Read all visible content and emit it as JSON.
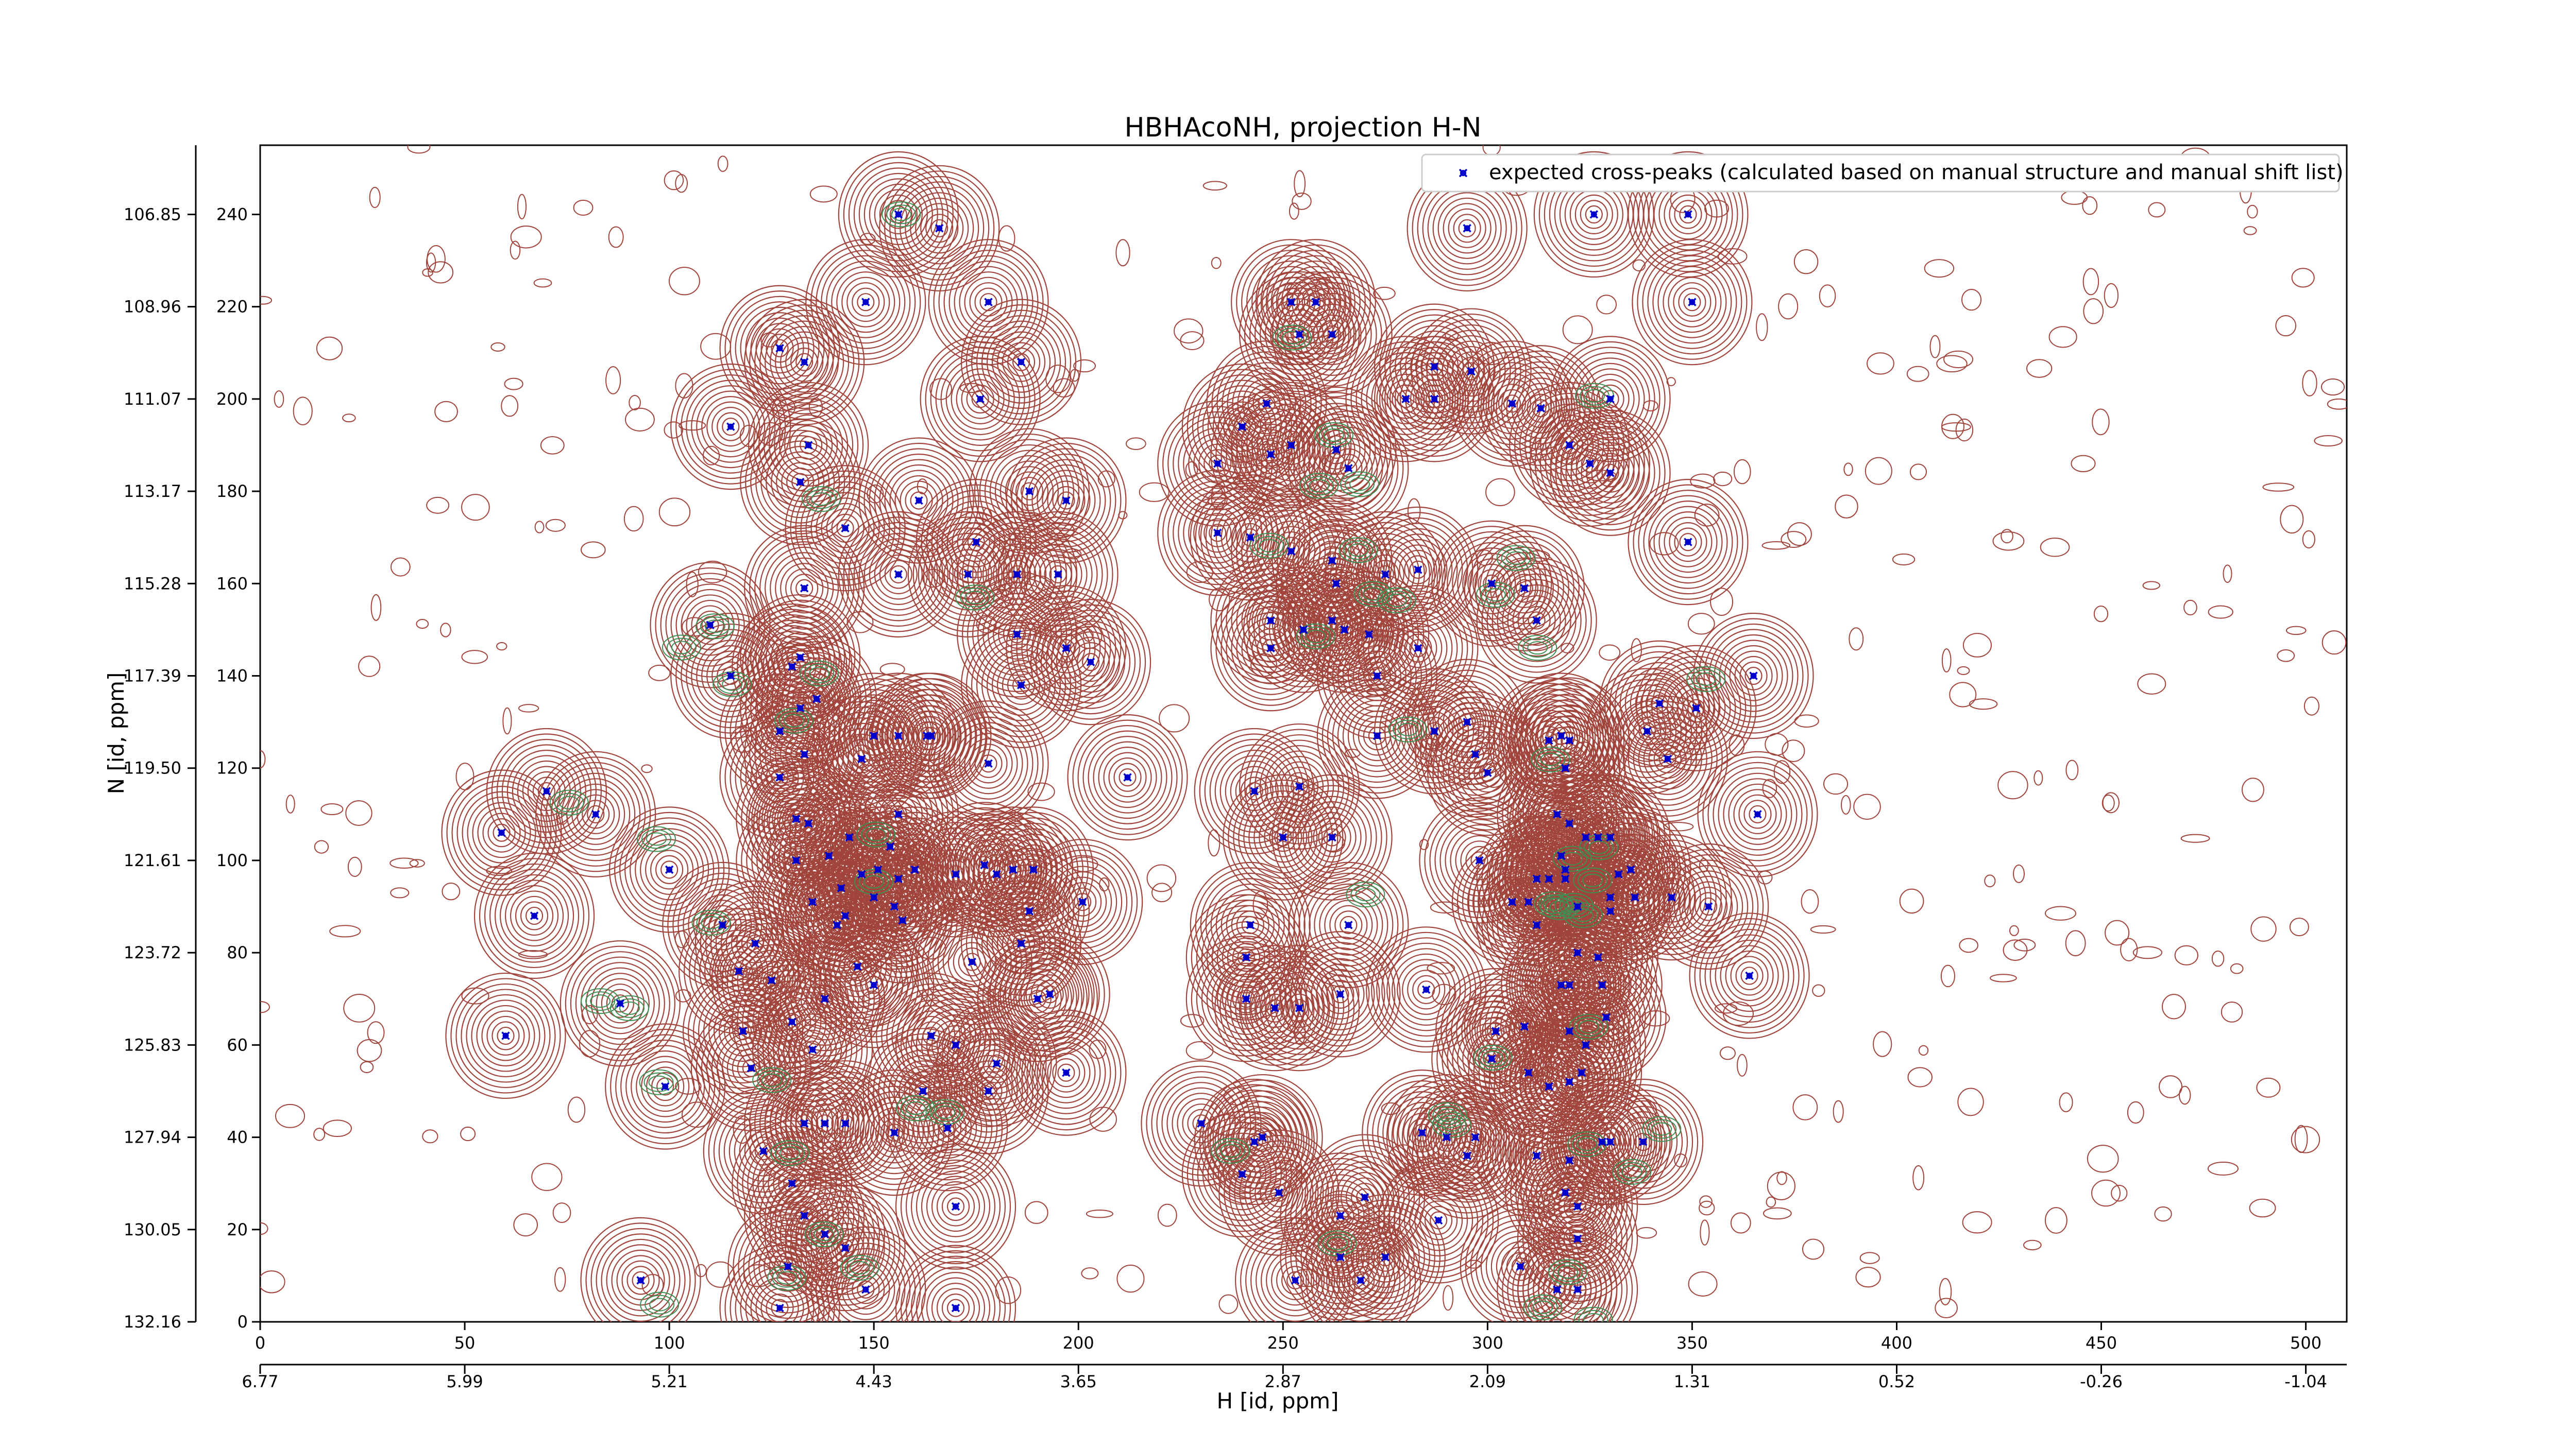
{
  "chart_data": {
    "type": "scatter",
    "title": "HBHAcoNH, projection H-N",
    "xlabel": "H [id, ppm]",
    "ylabel": "N [id, ppm]",
    "xlim": [
      0,
      510
    ],
    "ylim": [
      0,
      255
    ],
    "x_ticks": [
      0,
      50,
      100,
      150,
      200,
      250,
      300,
      350,
      400,
      450,
      500
    ],
    "y_ticks": [
      0,
      20,
      40,
      60,
      80,
      100,
      120,
      140,
      160,
      180,
      200,
      220,
      240
    ],
    "x_ppm_ticks": [
      "6.77",
      "5.99",
      "5.21",
      "4.43",
      "3.65",
      "2.87",
      "2.09",
      "1.31",
      "0.52",
      "-0.26",
      "-1.04"
    ],
    "y_ppm_ticks": [
      "132.16",
      "130.05",
      "127.94",
      "125.83",
      "123.72",
      "121.61",
      "119.50",
      "117.39",
      "115.28",
      "113.17",
      "111.07",
      "108.96",
      "106.85"
    ],
    "legend": {
      "position": "top-right",
      "entries": [
        "expected cross-peaks (calculated based on manual structure and manual shift list)"
      ]
    },
    "grid": false,
    "contour_colors": {
      "positive": "#a0443c",
      "negative": "#3f8f55"
    },
    "marker_color": "#0000cc",
    "series": [
      {
        "name": "expected cross-peaks (calculated based on manual structure and manual shift list)",
        "points": [
          [
            156,
            240
          ],
          [
            166,
            237
          ],
          [
            148,
            221
          ],
          [
            178,
            221
          ],
          [
            127,
            211
          ],
          [
            133,
            208
          ],
          [
            186,
            208
          ],
          [
            176,
            200
          ],
          [
            115,
            194
          ],
          [
            134,
            190
          ],
          [
            132,
            182
          ],
          [
            161,
            178
          ],
          [
            197,
            178
          ],
          [
            143,
            172
          ],
          [
            175,
            169
          ],
          [
            185,
            162
          ],
          [
            195,
            162
          ],
          [
            156,
            162
          ],
          [
            173,
            162
          ],
          [
            133,
            159
          ],
          [
            185,
            149
          ],
          [
            197,
            146
          ],
          [
            132,
            144
          ],
          [
            130,
            142
          ],
          [
            203,
            143
          ],
          [
            115,
            140
          ],
          [
            110,
            151
          ],
          [
            136,
            135
          ],
          [
            132,
            133
          ],
          [
            127,
            128
          ],
          [
            186,
            138
          ],
          [
            150,
            127
          ],
          [
            156,
            127
          ],
          [
            164,
            127
          ],
          [
            133,
            123
          ],
          [
            127,
            118
          ],
          [
            147,
            122
          ],
          [
            163,
            127
          ],
          [
            178,
            121
          ],
          [
            212,
            118
          ],
          [
            70,
            115
          ],
          [
            82,
            110
          ],
          [
            59,
            106
          ],
          [
            131,
            109
          ],
          [
            144,
            105
          ],
          [
            156,
            110
          ],
          [
            154,
            103
          ],
          [
            139,
            101
          ],
          [
            134,
            108
          ],
          [
            131,
            100
          ],
          [
            151,
            98
          ],
          [
            147,
            97
          ],
          [
            156,
            96
          ],
          [
            160,
            98
          ],
          [
            170,
            97
          ],
          [
            180,
            97
          ],
          [
            184,
            98
          ],
          [
            189,
            98
          ],
          [
            177,
            99
          ],
          [
            188,
            89
          ],
          [
            201,
            91
          ],
          [
            142,
            94
          ],
          [
            135,
            91
          ],
          [
            143,
            88
          ],
          [
            150,
            92
          ],
          [
            155,
            90
          ],
          [
            157,
            87
          ],
          [
            141,
            86
          ],
          [
            113,
            86
          ],
          [
            121,
            82
          ],
          [
            117,
            76
          ],
          [
            125,
            74
          ],
          [
            146,
            77
          ],
          [
            150,
            73
          ],
          [
            138,
            70
          ],
          [
            186,
            82
          ],
          [
            193,
            71
          ],
          [
            174,
            78
          ],
          [
            190,
            70
          ],
          [
            100,
            98
          ],
          [
            67,
            88
          ],
          [
            88,
            69
          ],
          [
            118,
            63
          ],
          [
            130,
            65
          ],
          [
            135,
            59
          ],
          [
            120,
            55
          ],
          [
            123,
            37
          ],
          [
            143,
            43
          ],
          [
            133,
            43
          ],
          [
            138,
            43
          ],
          [
            155,
            41
          ],
          [
            168,
            42
          ],
          [
            180,
            56
          ],
          [
            178,
            50
          ],
          [
            197,
            54
          ],
          [
            164,
            62
          ],
          [
            170,
            60
          ],
          [
            162,
            50
          ],
          [
            99,
            51
          ],
          [
            60,
            62
          ],
          [
            130,
            30
          ],
          [
            133,
            23
          ],
          [
            138,
            19
          ],
          [
            143,
            16
          ],
          [
            129,
            12
          ],
          [
            148,
            7
          ],
          [
            170,
            25
          ],
          [
            127,
            3
          ],
          [
            93,
            9
          ],
          [
            170,
            3
          ],
          [
            243,
            115
          ],
          [
            242,
            86
          ],
          [
            254,
            116
          ],
          [
            250,
            105
          ],
          [
            262,
            105
          ],
          [
            266,
            86
          ],
          [
            264,
            71
          ],
          [
            254,
            68
          ],
          [
            265,
            150
          ],
          [
            271,
            149
          ],
          [
            273,
            140
          ],
          [
            283,
            146
          ],
          [
            262,
            152
          ],
          [
            273,
            127
          ],
          [
            295,
            130
          ],
          [
            300,
            119
          ],
          [
            287,
            128
          ],
          [
            297,
            123
          ],
          [
            315,
            126
          ],
          [
            318,
            127
          ],
          [
            320,
            126
          ],
          [
            319,
            120
          ],
          [
            317,
            110
          ],
          [
            320,
            108
          ],
          [
            324,
            105
          ],
          [
            327,
            105
          ],
          [
            330,
            105
          ],
          [
            298,
            100
          ],
          [
            318,
            101
          ],
          [
            319,
            98
          ],
          [
            312,
            96
          ],
          [
            332,
            97
          ],
          [
            335,
            98
          ],
          [
            336,
            92
          ],
          [
            345,
            92
          ],
          [
            339,
            128
          ],
          [
            344,
            122
          ],
          [
            342,
            134
          ],
          [
            351,
            133
          ],
          [
            319,
            96
          ],
          [
            315,
            96
          ],
          [
            306,
            91
          ],
          [
            310,
            91
          ],
          [
            322,
            90
          ],
          [
            330,
            89
          ],
          [
            330,
            92
          ],
          [
            354,
            90
          ],
          [
            364,
            75
          ],
          [
            366,
            110
          ],
          [
            365,
            140
          ],
          [
            285,
            72
          ],
          [
            312,
            86
          ],
          [
            322,
            80
          ],
          [
            327,
            79
          ],
          [
            328,
            73
          ],
          [
            318,
            73
          ],
          [
            320,
            73
          ],
          [
            329,
            66
          ],
          [
            324,
            60
          ],
          [
            309,
            64
          ],
          [
            302,
            63
          ],
          [
            301,
            57
          ],
          [
            310,
            54
          ],
          [
            315,
            51
          ],
          [
            320,
            52
          ],
          [
            320,
            63
          ],
          [
            323,
            54
          ],
          [
            328,
            39
          ],
          [
            330,
            39
          ],
          [
            338,
            39
          ],
          [
            312,
            36
          ],
          [
            320,
            35
          ],
          [
            319,
            28
          ],
          [
            322,
            25
          ],
          [
            322,
            18
          ],
          [
            322,
            7
          ],
          [
            317,
            7
          ],
          [
            308,
            12
          ],
          [
            288,
            22
          ],
          [
            270,
            27
          ],
          [
            264,
            23
          ],
          [
            264,
            14
          ],
          [
            269,
            9
          ],
          [
            275,
            14
          ],
          [
            253,
            9
          ],
          [
            249,
            28
          ],
          [
            245,
            40
          ],
          [
            240,
            32
          ],
          [
            243,
            39
          ],
          [
            284,
            41
          ],
          [
            290,
            40
          ],
          [
            297,
            40
          ],
          [
            295,
            36
          ],
          [
            241,
            79
          ],
          [
            248,
            68
          ],
          [
            241,
            70
          ],
          [
            230,
            43
          ],
          [
            312,
            152
          ],
          [
            301,
            160
          ],
          [
            309,
            159
          ],
          [
            283,
            163
          ],
          [
            275,
            162
          ],
          [
            263,
            160
          ],
          [
            255,
            150
          ],
          [
            247,
            152
          ],
          [
            247,
            146
          ],
          [
            234,
            171
          ],
          [
            242,
            170
          ],
          [
            252,
            167
          ],
          [
            262,
            165
          ],
          [
            234,
            186
          ],
          [
            247,
            188
          ],
          [
            252,
            190
          ],
          [
            263,
            189
          ],
          [
            266,
            185
          ],
          [
            240,
            194
          ],
          [
            246,
            199
          ],
          [
            280,
            200
          ],
          [
            287,
            200
          ],
          [
            287,
            207
          ],
          [
            296,
            206
          ],
          [
            306,
            199
          ],
          [
            313,
            198
          ],
          [
            320,
            190
          ],
          [
            325,
            186
          ],
          [
            330,
            184
          ],
          [
            330,
            200
          ],
          [
            262,
            214
          ],
          [
            254,
            214
          ],
          [
            252,
            221
          ],
          [
            258,
            221
          ],
          [
            295,
            237
          ],
          [
            326,
            240
          ],
          [
            349,
            240
          ],
          [
            350,
            221
          ],
          [
            349,
            169
          ],
          [
            188,
            180
          ]
        ]
      }
    ]
  }
}
